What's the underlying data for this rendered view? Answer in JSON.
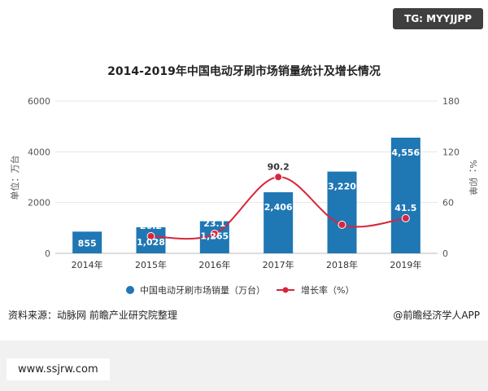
{
  "tag": "TG: MYYJJPP",
  "footer_url": "www.ssjrw.com",
  "chart_data": {
    "type": "bar",
    "title": "2014-2019年中国电动牙刷市场销量统计及增长情况",
    "categories": [
      "2014年",
      "2015年",
      "2016年",
      "2017年",
      "2018年",
      "2019年"
    ],
    "series": [
      {
        "name": "中国电动牙刷市场销量（万台）",
        "type": "bar",
        "axis": "left",
        "color": "#1f77b4",
        "values": [
          855,
          1028,
          1265,
          2406,
          3220,
          4556
        ],
        "labels": [
          "855",
          "1,028",
          "1,265",
          "2,406",
          "3,220",
          "4,556"
        ]
      },
      {
        "name": "增长率（%）",
        "type": "line",
        "axis": "right",
        "color": "#d7263d",
        "values": [
          null,
          20.2,
          23.1,
          90.2,
          33.8,
          41.5
        ],
        "labels": [
          "",
          "20.2",
          "23.1",
          "90.2",
          "",
          "41.5"
        ]
      }
    ],
    "ylabel": "单位：万台",
    "y2label": "%：卯单",
    "ylim": [
      0,
      6000
    ],
    "yticks": [
      0,
      2000,
      4000,
      6000
    ],
    "y2lim": [
      0,
      180
    ],
    "y2ticks": [
      0,
      60,
      120,
      180
    ],
    "grid": true,
    "legend": "bottom",
    "source": "资料来源：动脉网 前瞻产业研究院整理",
    "credit": "@前瞻经济学人APP"
  }
}
